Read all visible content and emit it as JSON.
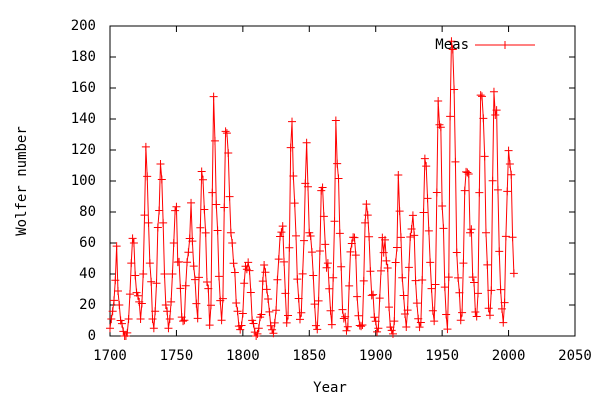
{
  "chart_data": {
    "type": "line",
    "xlabel": "Year",
    "ylabel": "Wolfer number",
    "x": [
      1700,
      1701,
      1702,
      1703,
      1704,
      1705,
      1706,
      1707,
      1708,
      1709,
      1710,
      1711,
      1712,
      1713,
      1714,
      1715,
      1716,
      1717,
      1718,
      1719,
      1720,
      1721,
      1722,
      1723,
      1724,
      1725,
      1726,
      1727,
      1728,
      1729,
      1730,
      1731,
      1732,
      1733,
      1734,
      1735,
      1736,
      1737,
      1738,
      1739,
      1740,
      1741,
      1742,
      1743,
      1744,
      1745,
      1746,
      1747,
      1748,
      1749,
      1750,
      1751,
      1752,
      1753,
      1754,
      1755,
      1756,
      1757,
      1758,
      1759,
      1760,
      1761,
      1762,
      1763,
      1764,
      1765,
      1766,
      1767,
      1768,
      1769,
      1770,
      1771,
      1772,
      1773,
      1774,
      1775,
      1776,
      1777,
      1778,
      1779,
      1780,
      1781,
      1782,
      1783,
      1784,
      1785,
      1786,
      1787,
      1788,
      1789,
      1790,
      1791,
      1792,
      1793,
      1794,
      1795,
      1796,
      1797,
      1798,
      1799,
      1800,
      1801,
      1802,
      1803,
      1804,
      1805,
      1806,
      1807,
      1808,
      1809,
      1810,
      1811,
      1812,
      1813,
      1814,
      1815,
      1816,
      1817,
      1818,
      1819,
      1820,
      1821,
      1822,
      1823,
      1824,
      1825,
      1826,
      1827,
      1828,
      1829,
      1830,
      1831,
      1832,
      1833,
      1834,
      1835,
      1836,
      1837,
      1838,
      1839,
      1840,
      1841,
      1842,
      1843,
      1844,
      1845,
      1846,
      1847,
      1848,
      1849,
      1850,
      1851,
      1852,
      1853,
      1854,
      1855,
      1856,
      1857,
      1858,
      1859,
      1860,
      1861,
      1862,
      1863,
      1864,
      1865,
      1866,
      1867,
      1868,
      1869,
      1870,
      1871,
      1872,
      1873,
      1874,
      1875,
      1876,
      1877,
      1878,
      1879,
      1880,
      1881,
      1882,
      1883,
      1884,
      1885,
      1886,
      1887,
      1888,
      1889,
      1890,
      1891,
      1892,
      1893,
      1894,
      1895,
      1896,
      1897,
      1898,
      1899,
      1900,
      1901,
      1902,
      1903,
      1904,
      1905,
      1906,
      1907,
      1908,
      1909,
      1910,
      1911,
      1912,
      1913,
      1914,
      1915,
      1916,
      1917,
      1918,
      1919,
      1920,
      1921,
      1922,
      1923,
      1924,
      1925,
      1926,
      1927,
      1928,
      1929,
      1930,
      1931,
      1932,
      1933,
      1934,
      1935,
      1936,
      1937,
      1938,
      1939,
      1940,
      1941,
      1942,
      1943,
      1944,
      1945,
      1946,
      1947,
      1948,
      1949,
      1950,
      1951,
      1952,
      1953,
      1954,
      1955,
      1956,
      1957,
      1958,
      1959,
      1960,
      1961,
      1962,
      1963,
      1964,
      1965,
      1966,
      1967,
      1968,
      1969,
      1970,
      1971,
      1972,
      1973,
      1974,
      1975,
      1976,
      1977,
      1978,
      1979,
      1980,
      1981,
      1982,
      1983,
      1984,
      1985,
      1986,
      1987,
      1988,
      1989,
      1990,
      1991,
      1992,
      1993,
      1994,
      1995,
      1996,
      1997,
      1998,
      1999,
      2000,
      2001,
      2002,
      2003,
      2004
    ],
    "series": [
      {
        "name": "Meas",
        "color": "#ff0000",
        "values": [
          5,
          11,
          16,
          23,
          36,
          58,
          29,
          20,
          10,
          8,
          3,
          0,
          0,
          2,
          11,
          27,
          47,
          63,
          60,
          39,
          28,
          26,
          22,
          11,
          21,
          40,
          78,
          122,
          103,
          73,
          47,
          35,
          11,
          5,
          16,
          34,
          70,
          81,
          111,
          101,
          73,
          40,
          20,
          16,
          5,
          11,
          22,
          40,
          60,
          80.9,
          83.4,
          47.7,
          47.8,
          30.7,
          12.2,
          9.6,
          10.2,
          32.4,
          47.6,
          54,
          62.9,
          85.9,
          61.2,
          45.1,
          36.4,
          20.9,
          11.4,
          37.8,
          69.8,
          106.1,
          100.8,
          81.6,
          66.5,
          34.8,
          30.6,
          7,
          19.8,
          92.5,
          154.4,
          125.9,
          84.8,
          68.1,
          38.5,
          22.8,
          10.2,
          24.1,
          82.9,
          132,
          130.9,
          118.1,
          89.9,
          66.6,
          60,
          46.9,
          41,
          21.3,
          16,
          6.4,
          4.1,
          6.8,
          14.5,
          34,
          45,
          43.1,
          47.5,
          42.2,
          28.1,
          10.1,
          8.1,
          2.5,
          0,
          1.4,
          5,
          12.2,
          13.9,
          35.4,
          45.8,
          41.1,
          30.1,
          23.9,
          15.6,
          6.6,
          4,
          1.8,
          8.5,
          16.6,
          36.3,
          49.6,
          64.2,
          67,
          70.9,
          47.8,
          27.5,
          8.5,
          13.2,
          56.9,
          121.5,
          138.3,
          103.2,
          85.7,
          64.6,
          36.7,
          24.2,
          10.7,
          15,
          40.1,
          61.5,
          98.5,
          124.7,
          96.3,
          66.6,
          64.5,
          54.1,
          39,
          20.6,
          6.7,
          4.3,
          22.7,
          54.8,
          93.8,
          95.8,
          77.2,
          59.1,
          44,
          47,
          30.5,
          16.3,
          7.3,
          37.6,
          74,
          139,
          111.2,
          101.6,
          66.2,
          44.7,
          17,
          11.3,
          12.4,
          3.4,
          6,
          32.3,
          54.3,
          59.7,
          63.7,
          63.5,
          52.2,
          25.4,
          13.1,
          6.8,
          6.3,
          7.1,
          35.6,
          73,
          85.1,
          78,
          64,
          41.8,
          26.2,
          26.7,
          12.1,
          9.5,
          2.7,
          5,
          24.4,
          42,
          63.5,
          53.8,
          62,
          48.5,
          43.9,
          18.6,
          5.7,
          3.6,
          1.4,
          9.6,
          47.4,
          57.1,
          103.9,
          80.6,
          63.6,
          37.6,
          26.1,
          14.2,
          5.8,
          16.7,
          44.3,
          63.9,
          69,
          77.8,
          64.9,
          35.7,
          21.2,
          11.1,
          5.7,
          8.7,
          36.1,
          79.7,
          114.4,
          109.6,
          88.8,
          67.8,
          47.5,
          30.6,
          16.3,
          9.6,
          33.2,
          92.6,
          151.6,
          136.3,
          134.7,
          83.9,
          69.4,
          31.5,
          13.9,
          4.4,
          38,
          141.7,
          190.2,
          184.8,
          159,
          112.3,
          53.9,
          37.5,
          27.9,
          10.2,
          15.1,
          47,
          93.8,
          105.9,
          105.5,
          104.5,
          66.6,
          68.9,
          38,
          34.5,
          15.5,
          12.6,
          27.5,
          92.5,
          155.4,
          154.6,
          140.4,
          115.9,
          66.6,
          45.9,
          17.9,
          13.4,
          29.4,
          100.2,
          157.6,
          142.6,
          145.7,
          94.3,
          54.6,
          29.9,
          17.5,
          8.6,
          21.5,
          64.3,
          93.3,
          119.6,
          111,
          104,
          63.7,
          40.4
        ]
      }
    ],
    "xlim": [
      1700,
      2050
    ],
    "xticks": [
      1700,
      1750,
      1800,
      1850,
      1900,
      1950,
      2000,
      2050
    ],
    "ylim": [
      0,
      200
    ],
    "yticks": [
      0,
      20,
      40,
      60,
      80,
      100,
      120,
      140,
      160,
      180,
      200
    ],
    "legend": "top right",
    "grid": false
  }
}
